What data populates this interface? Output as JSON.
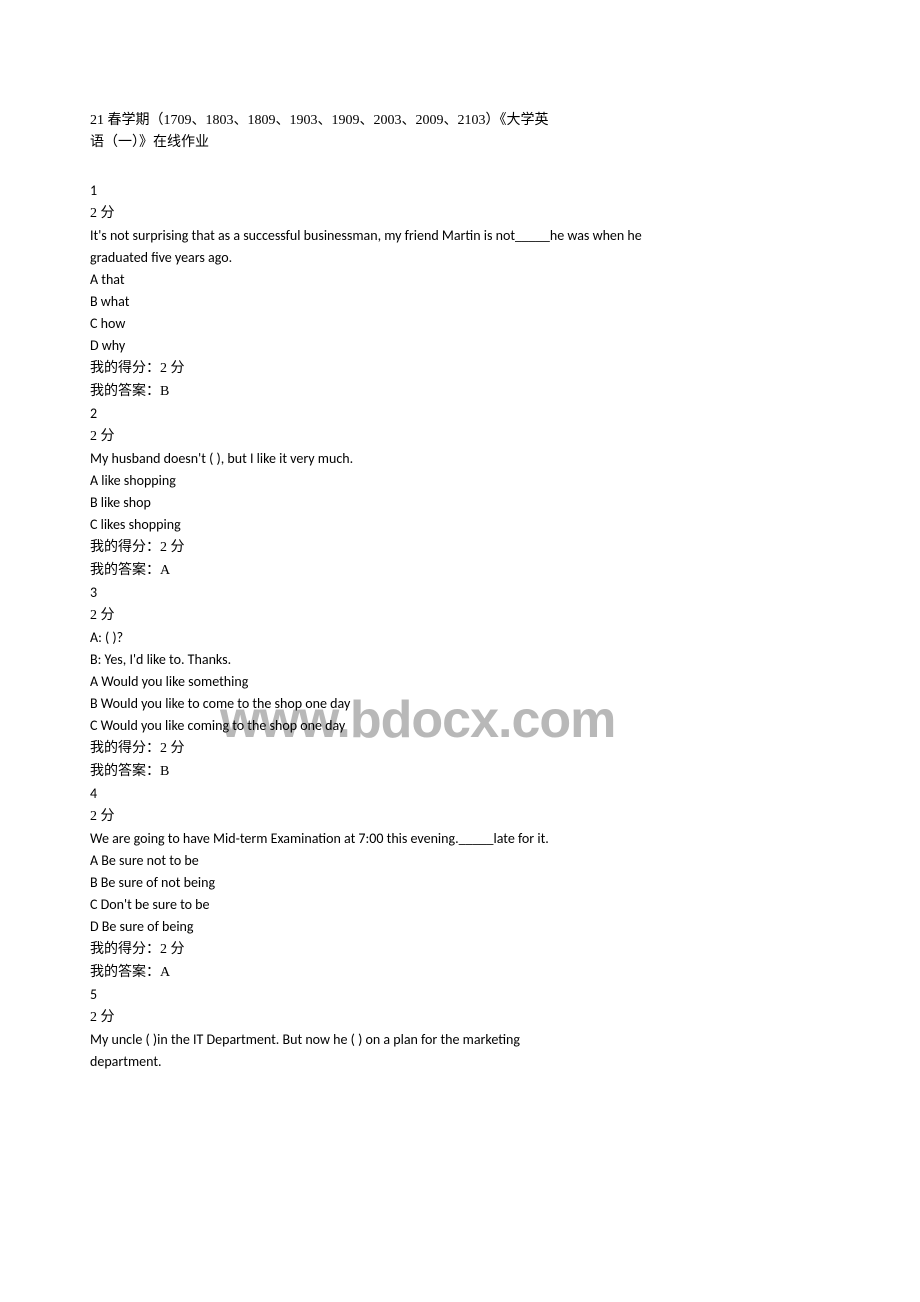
{
  "watermark": "www.bdocx.com",
  "header": {
    "line1": "21 春学期（1709、1803、1809、1903、1909、2003、2009、2103）《大学英",
    "line2": "语（一）》在线作业"
  },
  "questions": [
    {
      "number": "1",
      "points": "2 分",
      "stem_lines": [
        "It's not surprising that as a successful businessman, my friend Martin is not_____he was when he",
        "graduated five years ago."
      ],
      "options": [
        "A that",
        "B  what",
        "C  how",
        "D why"
      ],
      "score": "我的得分：2 分",
      "answer": "我的答案：B"
    },
    {
      "number": "2",
      "points": "2 分",
      "stem_lines": [
        "My husband doesn't ( ), but I like it very much."
      ],
      "options": [
        "A like shopping",
        "B like shop",
        "C likes shopping"
      ],
      "score": "我的得分：2 分",
      "answer": "我的答案：A"
    },
    {
      "number": "3",
      "points": "2 分",
      "stem_lines": [
        "A: ( )?",
        "B: Yes, I'd like to. Thanks."
      ],
      "options": [
        "A Would you like something",
        "B Would you like to come to the shop one day",
        "C Would you like coming to the shop one day"
      ],
      "score": "我的得分：2 分",
      "answer": "我的答案：B"
    },
    {
      "number": "4",
      "points": "2 分",
      "stem_lines": [
        "We are going to have Mid-term Examination at 7:00  this evening._____late for it."
      ],
      "options": [
        "A Be sure not to be",
        "B Be sure of not being",
        "C Don't be sure to be",
        "D Be sure of being"
      ],
      "score": "我的得分：2 分",
      "answer": "我的答案：A"
    },
    {
      "number": "5",
      "points": "2 分",
      "stem_lines": [
        "My uncle ( )in the IT Department. But now he ( ) on a plan for the marketing",
        "department."
      ],
      "options": [],
      "score": "",
      "answer": ""
    }
  ]
}
